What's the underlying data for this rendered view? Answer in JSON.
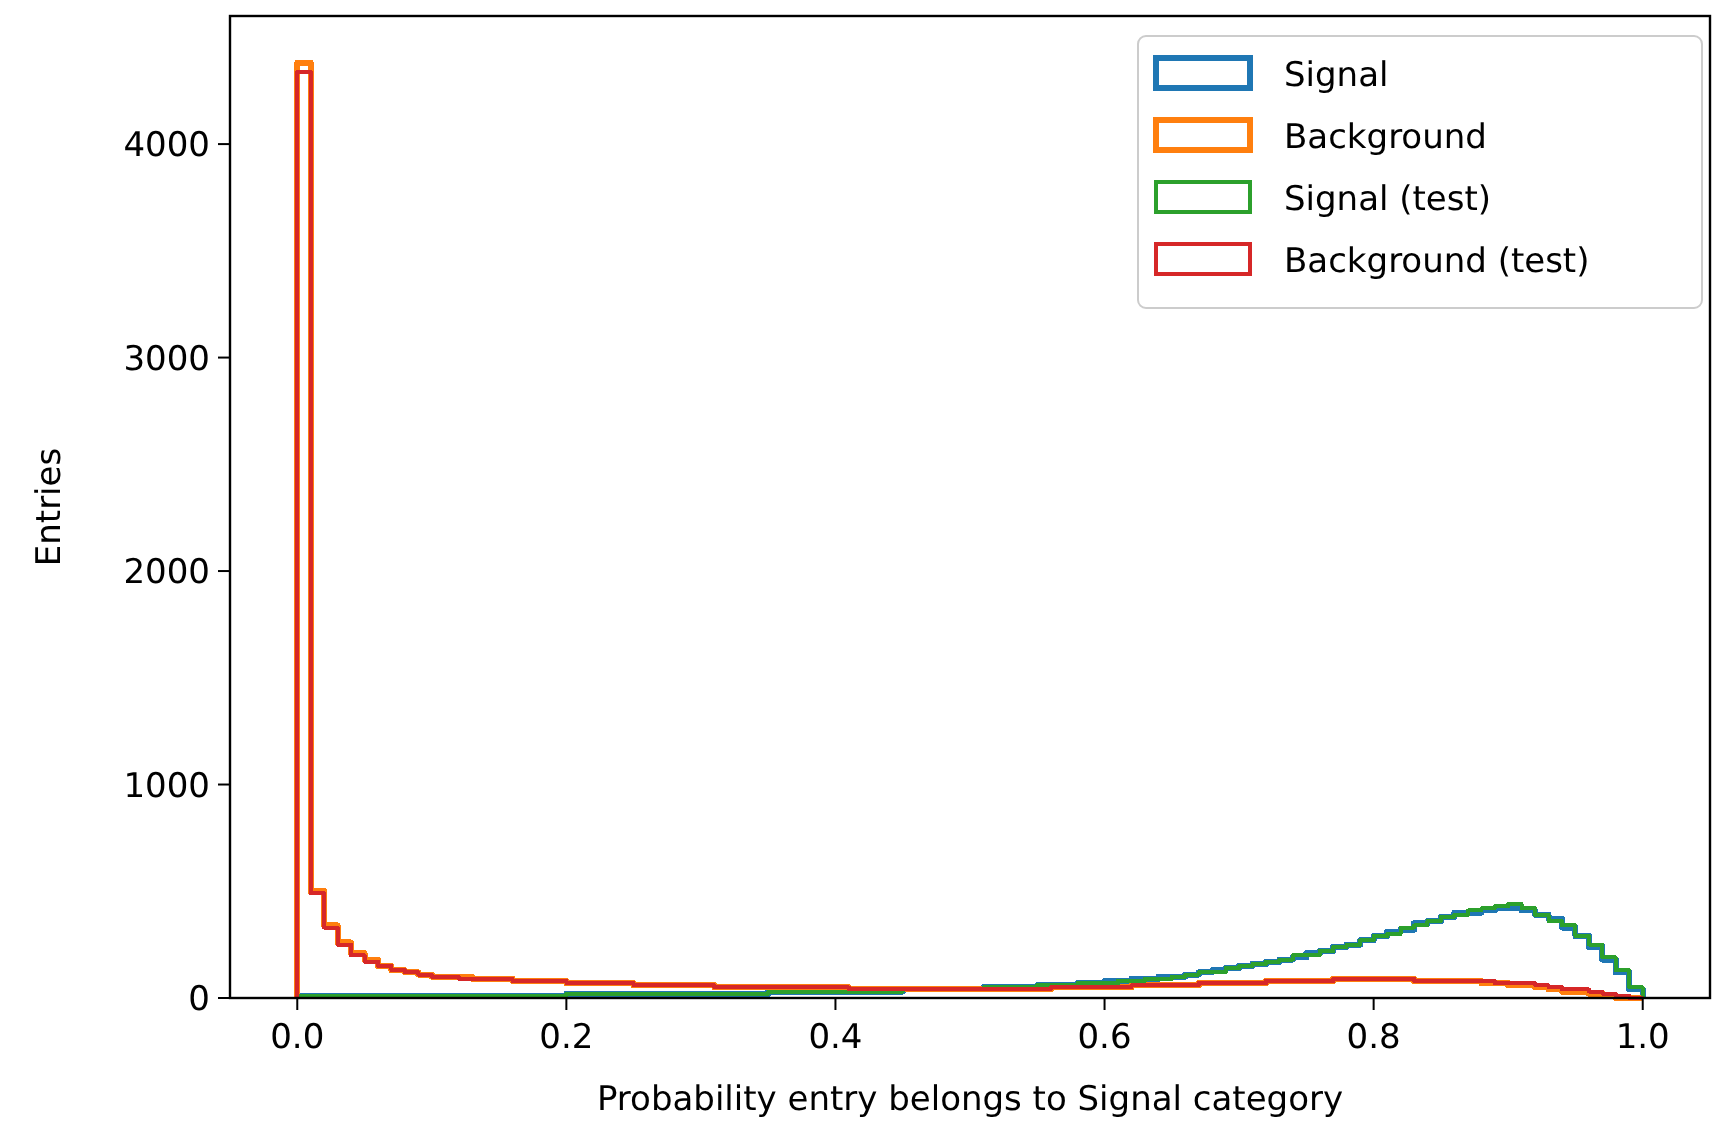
{
  "chart_data": {
    "type": "histogram",
    "xlabel": "Probability entry belongs to Signal category",
    "ylabel": "Entries",
    "bins": [
      0,
      0.01,
      0.02,
      0.03,
      0.04,
      0.05,
      0.06,
      0.07,
      0.08,
      0.09,
      0.1,
      0.11,
      0.12,
      0.13,
      0.14,
      0.15,
      0.16,
      0.17,
      0.18,
      0.19,
      0.2,
      0.21,
      0.22,
      0.23,
      0.24,
      0.25,
      0.26,
      0.27,
      0.28,
      0.29,
      0.3,
      0.31,
      0.32,
      0.33,
      0.34,
      0.35,
      0.36,
      0.37,
      0.38,
      0.39,
      0.4,
      0.41,
      0.42,
      0.43,
      0.44,
      0.45,
      0.46,
      0.47,
      0.48,
      0.49,
      0.5,
      0.51,
      0.52,
      0.53,
      0.54,
      0.55,
      0.56,
      0.57,
      0.58,
      0.59,
      0.6,
      0.61,
      0.62,
      0.63,
      0.64,
      0.65,
      0.66,
      0.67,
      0.68,
      0.69,
      0.7,
      0.71,
      0.72,
      0.73,
      0.74,
      0.75,
      0.76,
      0.77,
      0.78,
      0.79,
      0.8,
      0.81,
      0.82,
      0.83,
      0.84,
      0.85,
      0.86,
      0.87,
      0.88,
      0.89,
      0.9,
      0.91,
      0.92,
      0.93,
      0.94,
      0.95,
      0.96,
      0.97,
      0.98,
      0.99,
      1
    ],
    "series": [
      {
        "name": "Signal",
        "color": "#1f77b4",
        "values": [
          10,
          10,
          10,
          10,
          10,
          10,
          10,
          10,
          10,
          10,
          10,
          10,
          10,
          10,
          10,
          10,
          10,
          10,
          10,
          10,
          20,
          20,
          20,
          20,
          20,
          20,
          20,
          20,
          20,
          20,
          20,
          20,
          20,
          20,
          20,
          30,
          30,
          30,
          30,
          30,
          30,
          30,
          30,
          30,
          30,
          40,
          40,
          40,
          40,
          40,
          40,
          50,
          50,
          50,
          50,
          60,
          60,
          60,
          70,
          70,
          80,
          80,
          90,
          90,
          100,
          100,
          110,
          120,
          130,
          140,
          150,
          160,
          170,
          180,
          190,
          210,
          220,
          240,
          250,
          270,
          290,
          310,
          320,
          350,
          360,
          380,
          400,
          400,
          410,
          420,
          420,
          410,
          390,
          370,
          330,
          290,
          240,
          180,
          120,
          40
        ]
      },
      {
        "name": "Background",
        "color": "#ff7f0e",
        "values": [
          4380,
          500,
          340,
          260,
          210,
          180,
          150,
          130,
          120,
          110,
          100,
          100,
          100,
          90,
          90,
          90,
          80,
          80,
          80,
          80,
          70,
          70,
          70,
          70,
          70,
          60,
          60,
          60,
          60,
          60,
          60,
          50,
          50,
          50,
          50,
          50,
          50,
          50,
          50,
          50,
          50,
          40,
          40,
          40,
          40,
          40,
          40,
          40,
          40,
          40,
          40,
          40,
          40,
          40,
          40,
          40,
          50,
          50,
          50,
          50,
          50,
          50,
          60,
          60,
          60,
          60,
          60,
          70,
          70,
          70,
          70,
          70,
          80,
          80,
          80,
          80,
          80,
          90,
          90,
          90,
          90,
          90,
          90,
          80,
          80,
          80,
          80,
          80,
          70,
          70,
          60,
          60,
          50,
          40,
          30,
          30,
          20,
          10,
          0,
          0
        ]
      },
      {
        "name": "Signal (test)",
        "color": "#2ca02c",
        "values": [
          10,
          10,
          10,
          10,
          10,
          10,
          10,
          10,
          10,
          10,
          10,
          10,
          10,
          10,
          10,
          10,
          10,
          10,
          10,
          10,
          20,
          20,
          20,
          20,
          20,
          20,
          20,
          20,
          20,
          20,
          20,
          20,
          20,
          20,
          20,
          30,
          30,
          30,
          30,
          30,
          30,
          30,
          30,
          30,
          30,
          40,
          40,
          40,
          40,
          40,
          40,
          50,
          50,
          50,
          50,
          60,
          60,
          60,
          70,
          70,
          70,
          80,
          80,
          90,
          90,
          100,
          110,
          120,
          120,
          140,
          150,
          160,
          170,
          180,
          200,
          200,
          220,
          240,
          250,
          270,
          290,
          300,
          330,
          340,
          360,
          380,
          390,
          410,
          420,
          430,
          440,
          420,
          390,
          360,
          340,
          290,
          250,
          190,
          130,
          50
        ]
      },
      {
        "name": "Background (test)",
        "color": "#d62728",
        "values": [
          4340,
          490,
          330,
          250,
          200,
          170,
          150,
          130,
          120,
          110,
          100,
          100,
          90,
          90,
          90,
          90,
          80,
          80,
          80,
          80,
          70,
          70,
          70,
          70,
          70,
          60,
          60,
          60,
          60,
          60,
          60,
          50,
          50,
          50,
          50,
          50,
          50,
          50,
          50,
          50,
          50,
          40,
          40,
          40,
          40,
          40,
          40,
          40,
          40,
          40,
          40,
          40,
          40,
          40,
          40,
          40,
          50,
          50,
          50,
          50,
          50,
          50,
          60,
          60,
          60,
          60,
          60,
          70,
          70,
          70,
          70,
          70,
          80,
          80,
          80,
          80,
          80,
          90,
          90,
          90,
          90,
          90,
          90,
          80,
          80,
          80,
          80,
          80,
          80,
          70,
          70,
          70,
          60,
          50,
          40,
          40,
          30,
          20,
          10,
          0
        ]
      }
    ],
    "xlim": [
      -0.05,
      1.05
    ],
    "xticks": [
      {
        "value": 0,
        "label": "0.0"
      },
      {
        "value": 0.2,
        "label": "0.2"
      },
      {
        "value": 0.4,
        "label": "0.4"
      },
      {
        "value": 0.6,
        "label": "0.6"
      },
      {
        "value": 0.8,
        "label": "0.8"
      },
      {
        "value": 1,
        "label": "1.0"
      }
    ],
    "ylim": [
      0,
      4600
    ],
    "yticks": [
      0,
      1000,
      2000,
      3000,
      4000
    ],
    "legend": "top right",
    "grid": false
  }
}
